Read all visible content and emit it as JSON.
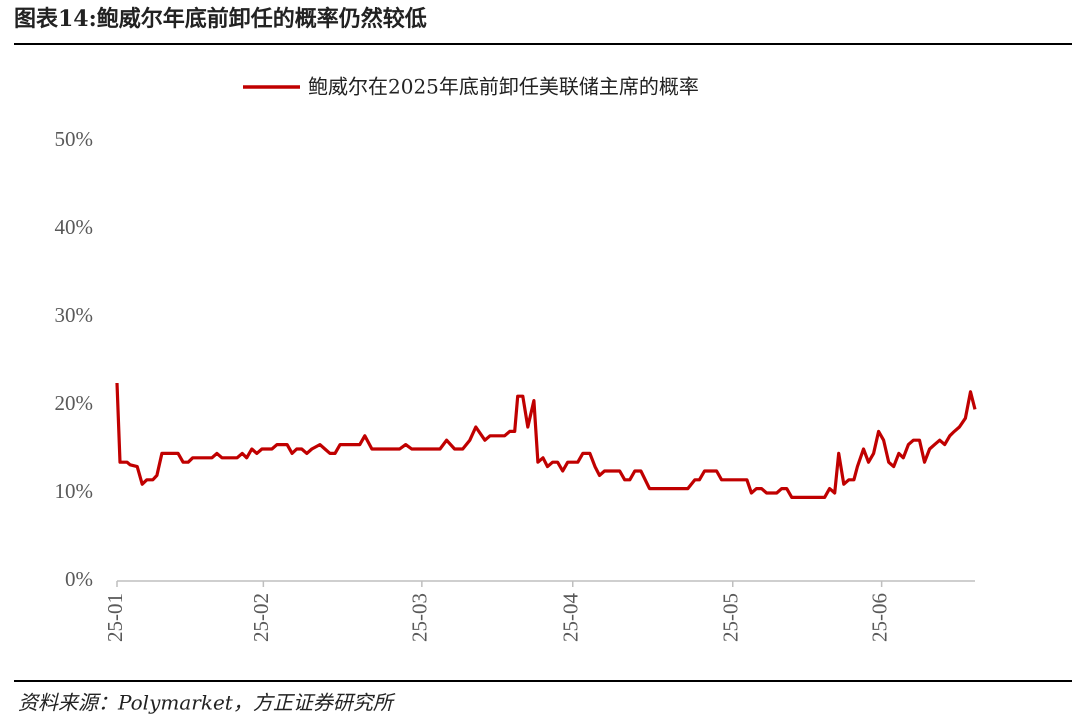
{
  "header": {
    "title": "图表14:鲍威尔年底前卸任的概率仍然较低"
  },
  "chart_data": {
    "type": "line",
    "x": [
      0,
      0.6,
      2,
      2.6,
      4,
      5,
      5.9,
      7.1,
      7.9,
      8.9,
      12.1,
      13.1,
      14.1,
      15,
      18.8,
      19.8,
      20.8,
      23.8,
      24.8,
      25.7,
      26.7,
      27.7,
      28.7,
      30.7,
      31.7,
      33.7,
      34.7,
      35.6,
      36.6,
      37.6,
      38.6,
      40.2,
      41.2,
      42.2,
      43.2,
      44.2,
      48.1,
      49.1,
      50.5,
      56,
      57.2,
      58.4,
      64,
      65.3,
      66.9,
      68.5,
      69.9,
      71.1,
      72.9,
      73.9,
      76.8,
      77.8,
      78.8,
      79.4,
      80.4,
      81.4,
      82.6,
      83.4,
      84.4,
      85.3,
      86.3,
      87.3,
      88.3,
      89.3,
      91.3,
      92.3,
      93.7,
      94.7,
      95.6,
      96.6,
      99.6,
      100.6,
      101.6,
      102.6,
      103.8,
      105.5,
      113.1,
      114.5,
      115.4,
      116.4,
      118.8,
      119.8,
      124.8,
      125.7,
      126.7,
      127.7,
      128.7,
      130.7,
      131.7,
      132.7,
      133.7,
      140.2,
      141.2,
      142.2,
      143,
      144,
      145,
      146,
      146.7,
      147.9,
      148.9,
      149.9,
      150.9,
      151.9,
      152.9,
      153.9,
      154.9,
      155.8,
      156.8,
      157.8,
      159,
      160,
      161,
      162,
      163,
      164,
      165,
      165.9,
      166.9,
      168.1,
      169.1,
      170
    ],
    "series": [
      {
        "name": "鲍威尔在2025年底前卸任美联储主席的概率",
        "color": "#c00000",
        "values": [
          22.5,
          13.5,
          13.5,
          13.2,
          13,
          11,
          11.5,
          11.5,
          12,
          14.5,
          14.5,
          13.5,
          13.5,
          14,
          14,
          14.5,
          14,
          14,
          14.5,
          14,
          15,
          14.5,
          15,
          15,
          15.5,
          15.5,
          14.5,
          15,
          15,
          14.5,
          15,
          15.5,
          15,
          14.5,
          14.5,
          15.5,
          15.5,
          16.5,
          15,
          15,
          15.5,
          15,
          15,
          16,
          15,
          15,
          16,
          17.5,
          16,
          16.5,
          16.5,
          17,
          17,
          21,
          21,
          17.5,
          20.5,
          13.5,
          14,
          13,
          13.5,
          13.5,
          12.5,
          13.5,
          13.5,
          14.5,
          14.5,
          13,
          12,
          12.5,
          12.5,
          11.5,
          11.5,
          12.5,
          12.5,
          10.5,
          10.5,
          11.5,
          11.5,
          12.5,
          12.5,
          11.5,
          11.5,
          10,
          10.5,
          10.5,
          10,
          10,
          10.5,
          10.5,
          9.5,
          9.5,
          10.5,
          10,
          14.5,
          11,
          11.5,
          11.5,
          13,
          15,
          13.5,
          14.5,
          17,
          16,
          13.5,
          13,
          14.5,
          14,
          15.5,
          16,
          16,
          13.5,
          15,
          15.5,
          16,
          15.5,
          16.5,
          17,
          17.5,
          18.5,
          21.5,
          19.5
        ]
      }
    ],
    "xlim": [
      0,
      170
    ],
    "xticks": [
      {
        "value": 0,
        "label": "25-01"
      },
      {
        "value": 29,
        "label": "25-02"
      },
      {
        "value": 60.4,
        "label": "25-03"
      },
      {
        "value": 90.3,
        "label": "25-04"
      },
      {
        "value": 122,
        "label": "25-05"
      },
      {
        "value": 151.5,
        "label": "25-06"
      }
    ],
    "ylim": [
      0,
      50
    ],
    "yticks": [
      {
        "value": 0,
        "label": "0%"
      },
      {
        "value": 10,
        "label": "10%"
      },
      {
        "value": 20,
        "label": "20%"
      },
      {
        "value": 30,
        "label": "30%"
      },
      {
        "value": 40,
        "label": "40%"
      },
      {
        "value": 50,
        "label": "50%"
      }
    ],
    "grid": false,
    "legend": "top"
  },
  "footer": {
    "source": "资料来源：Polymarket，方正证券研究所"
  }
}
